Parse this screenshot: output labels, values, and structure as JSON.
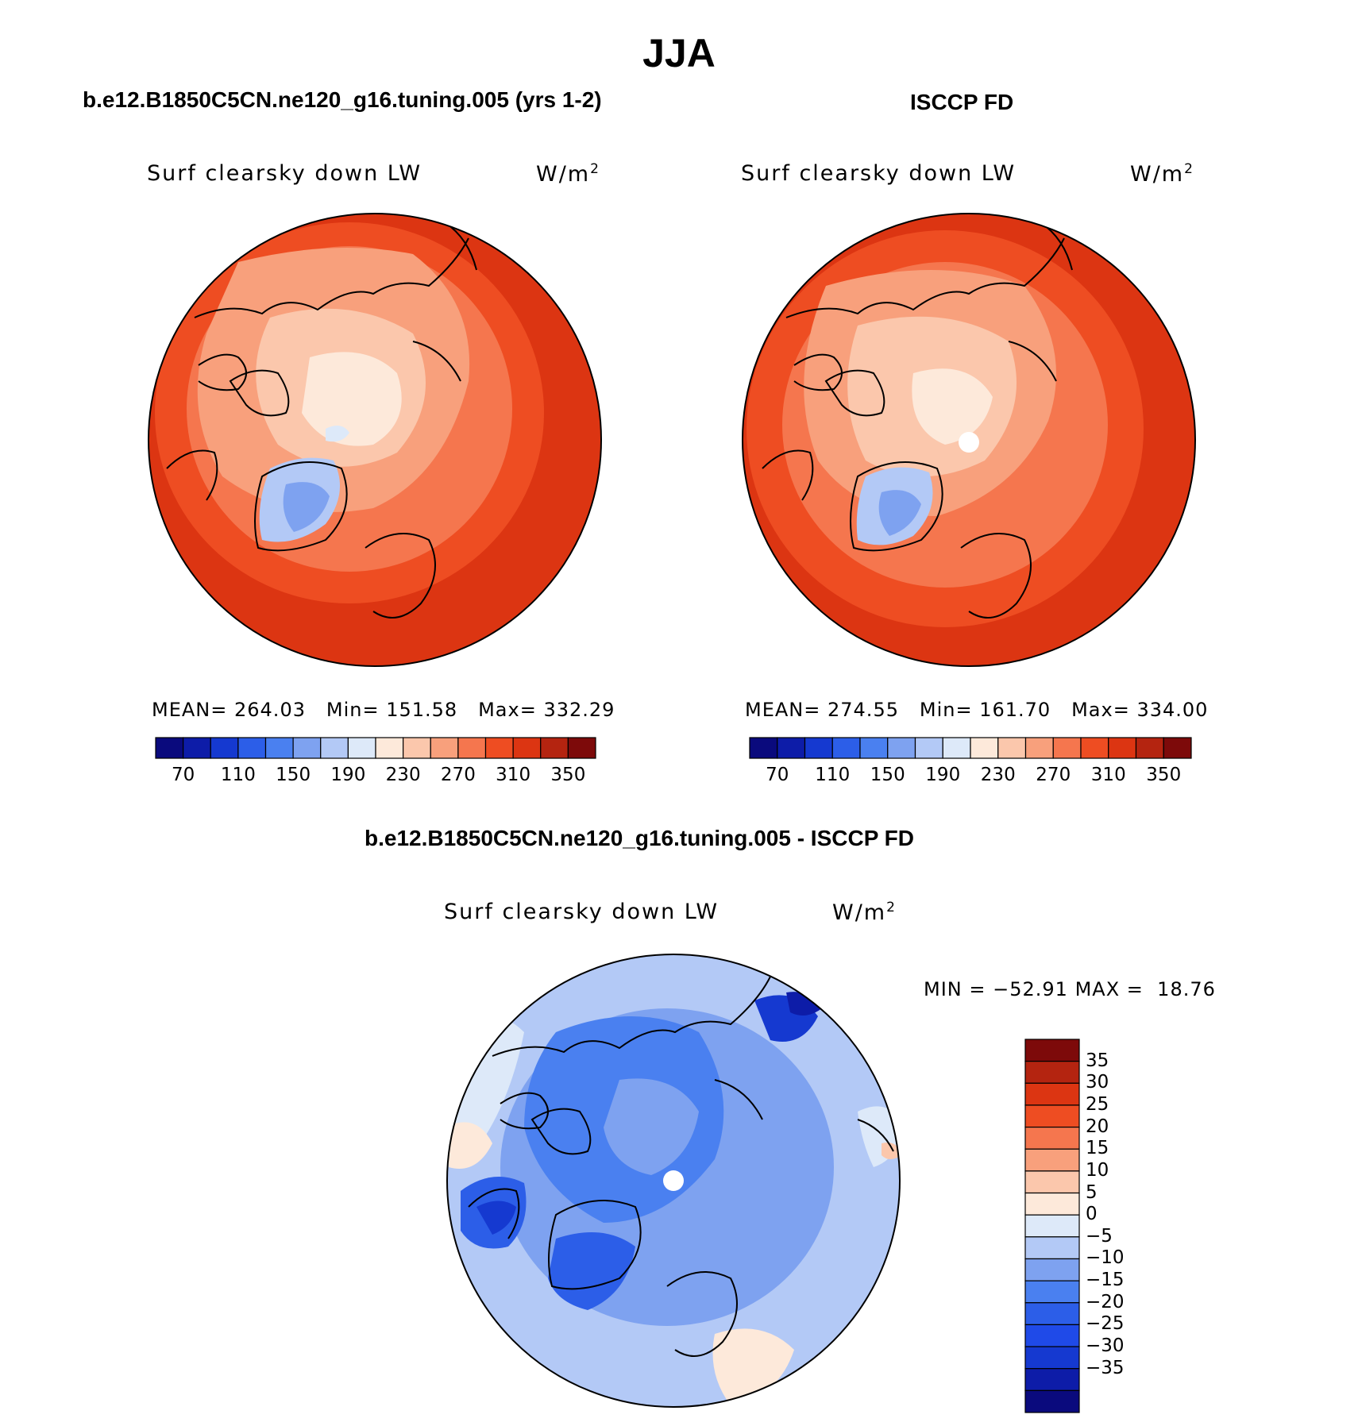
{
  "figure": {
    "title": "JJA",
    "panel_left_title": "b.e12.B1850C5CN.ne120_g16.tuning.005 (yrs 1-2)",
    "panel_right_title": "ISCCP FD",
    "panel_diff_title": "b.e12.B1850C5CN.ne120_g16.tuning.005 - ISCCP FD"
  },
  "panels": {
    "left": {
      "variable": "Surf clearsky down LW",
      "units": "W/m",
      "units_exp": "2",
      "mean_label": "MEAN=",
      "mean": "264.03",
      "min_label": "Min=",
      "min": "151.58",
      "max_label": "Max=",
      "max": "332.29"
    },
    "right": {
      "variable": "Surf clearsky down LW",
      "units": "W/m",
      "units_exp": "2",
      "mean_label": "MEAN=",
      "mean": "274.55",
      "min_label": "Min=",
      "min": "161.70",
      "max_label": "Max=",
      "max": "334.00"
    },
    "diff": {
      "variable": "Surf clearsky down LW",
      "units": "W/m",
      "units_exp": "2",
      "min_label": "MIN =",
      "min": "−52.91",
      "max_label": "MAX =",
      "max": "18.76"
    }
  },
  "colorbars": {
    "abs": {
      "colors": [
        "#0a0a7d",
        "#0d1ca8",
        "#1539d0",
        "#2c5ee8",
        "#4a80f0",
        "#7ea2f0",
        "#b3c9f6",
        "#dde9f9",
        "#fde9da",
        "#fbc7ac",
        "#f8a07c",
        "#f5764e",
        "#ee4d22",
        "#dc3512",
        "#b42410",
        "#7d0a0a"
      ],
      "tick_labels": [
        "70",
        "110",
        "150",
        "190",
        "230",
        "270",
        "310",
        "350"
      ]
    },
    "diff": {
      "colors": [
        "#0a0a7d",
        "#0d1ca8",
        "#1539d0",
        "#1f4ae8",
        "#2c5ee8",
        "#4a80f0",
        "#7ea2f0",
        "#b3c9f6",
        "#dde9f9",
        "#fde9da",
        "#fbc7ac",
        "#f8a07c",
        "#f5764e",
        "#ee4d22",
        "#dc3512",
        "#b42410",
        "#7d0a0a"
      ],
      "tick_labels": [
        "35",
        "30",
        "25",
        "20",
        "15",
        "10",
        "5",
        "0",
        "−5",
        "−10",
        "−15",
        "−20",
        "−25",
        "−30",
        "−35"
      ]
    }
  }
}
